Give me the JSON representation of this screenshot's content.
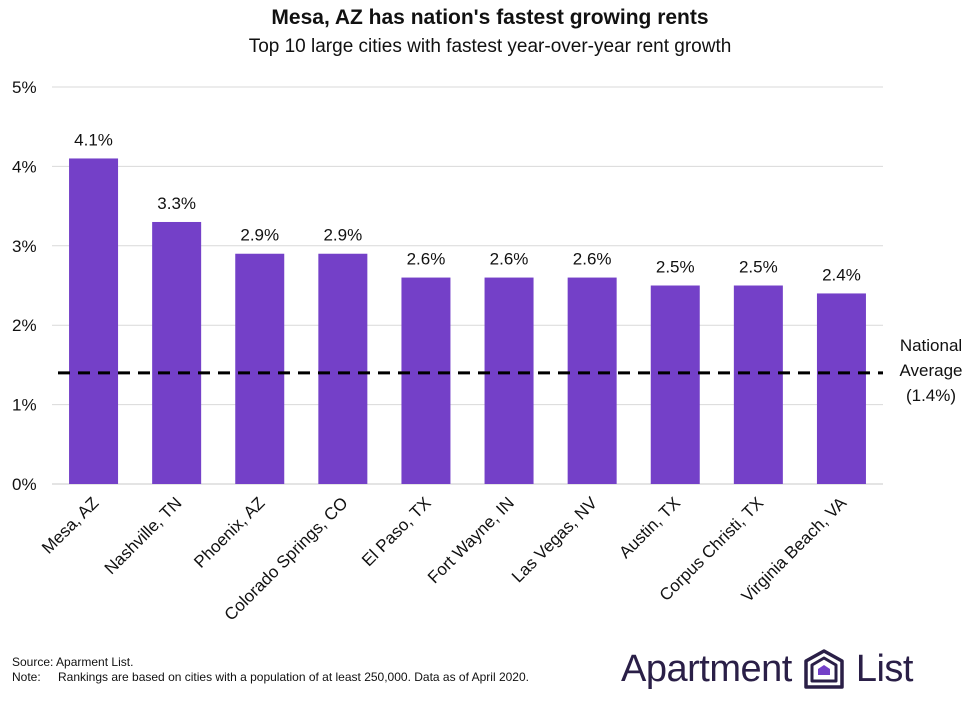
{
  "chart_data": {
    "type": "bar",
    "title": "Mesa, AZ has nation's fastest growing rents",
    "subtitle": "Top 10 large cities with fastest year-over-year rent growth",
    "categories": [
      "Mesa, AZ",
      "Nashville, TN",
      "Phoenix, AZ",
      "Colorado Springs, CO",
      "El Paso, TX",
      "Fort Wayne, IN",
      "Las Vegas, NV",
      "Austin, TX",
      "Corpus Christi, TX",
      "Virginia Beach, VA"
    ],
    "values": [
      4.1,
      3.3,
      2.9,
      2.9,
      2.6,
      2.6,
      2.6,
      2.5,
      2.5,
      2.4
    ],
    "data_labels": [
      "4.1%",
      "3.3%",
      "2.9%",
      "2.9%",
      "2.6%",
      "2.6%",
      "2.6%",
      "2.5%",
      "2.5%",
      "2.4%"
    ],
    "yticks": [
      0,
      1,
      2,
      3,
      4,
      5
    ],
    "ytick_labels": [
      "0%",
      "1%",
      "2%",
      "3%",
      "4%",
      "5%"
    ],
    "ylim": [
      0,
      5
    ],
    "grid": true,
    "bar_color": "#7440c8",
    "reference_line": {
      "value": 1.4,
      "label_lines": [
        "National",
        "Average",
        "(1.4%)"
      ],
      "style": "dashed",
      "color": "#000000"
    }
  },
  "footer": {
    "source_key": "Source:",
    "source_text": "Aparment List.",
    "note_key": "Note:",
    "note_text": "Rankings are based on cities with a population of at least 250,000. Data as of April 2020."
  },
  "brand": {
    "word1": "Apartment",
    "word2": "List",
    "logo_icon": "apartment-list-logo-icon",
    "logo_color": "#2a1f47",
    "logo_accent": "#7440c8"
  }
}
